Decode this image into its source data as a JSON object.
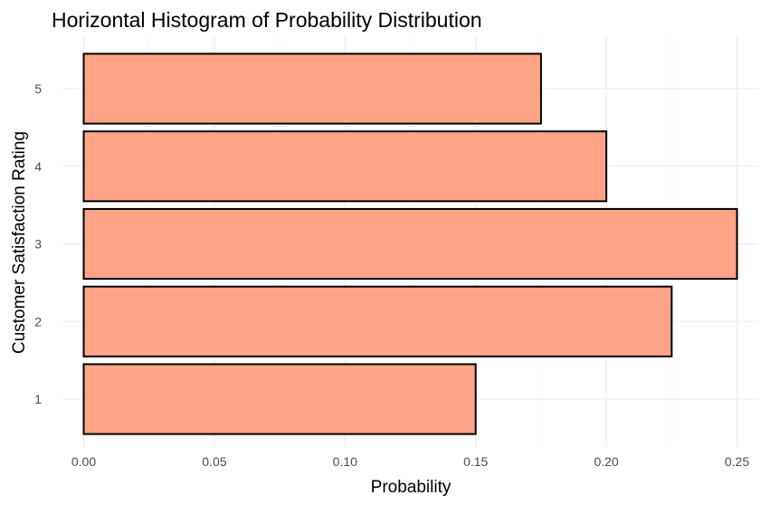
{
  "chart_data": {
    "type": "bar",
    "orientation": "horizontal",
    "title": "Horizontal Histogram of Probability Distribution",
    "xlabel": "Probability",
    "ylabel": "Customer Satisfaction Rating",
    "categories": [
      "1",
      "2",
      "3",
      "4",
      "5"
    ],
    "values": [
      0.15,
      0.225,
      0.25,
      0.2,
      0.175
    ],
    "xlim": [
      0,
      0.25
    ],
    "xticks": [
      "0.00",
      "0.05",
      "0.10",
      "0.15",
      "0.20",
      "0.25"
    ],
    "xtick_values": [
      0,
      0.05,
      0.1,
      0.15,
      0.2,
      0.25
    ],
    "grid": true,
    "bar_fill": "#FFA487",
    "bar_outline": "#000000",
    "legend": "none"
  }
}
